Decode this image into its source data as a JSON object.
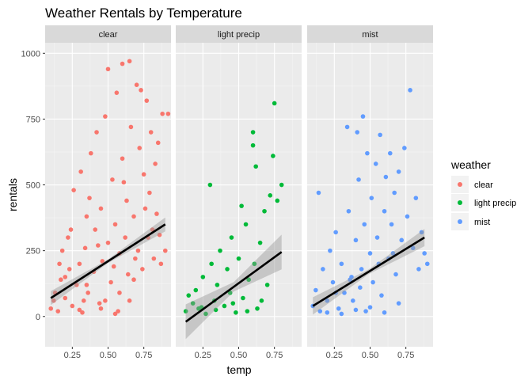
{
  "chart_data": {
    "type": "scatter",
    "title": "Weather Rentals by Temperature",
    "xlabel": "temp",
    "ylabel": "rentals",
    "xlim": [
      0.06,
      0.94
    ],
    "ylim": [
      -115,
      1040
    ],
    "x_ticks": [
      0.25,
      0.5,
      0.75
    ],
    "x_tick_labels": [
      "0.25",
      "0.50",
      "0.75"
    ],
    "y_ticks": [
      0,
      250,
      500,
      750,
      1000
    ],
    "y_tick_labels": [
      "0",
      "250",
      "500",
      "750",
      "1000"
    ],
    "grid": true,
    "legend": {
      "title": "weather",
      "placement": "right"
    },
    "facets": [
      {
        "label": "clear",
        "color": "#F8766D",
        "trend": {
          "x": [
            0.1,
            0.9
          ],
          "y": [
            70,
            350
          ],
          "se": 12
        }
      },
      {
        "label": "light precip",
        "color": "#00BA38",
        "trend": {
          "x": [
            0.13,
            0.8
          ],
          "y": [
            -20,
            245
          ],
          "se": 30
        }
      },
      {
        "label": "mist",
        "color": "#619CFF",
        "trend": {
          "x": [
            0.1,
            0.88
          ],
          "y": [
            40,
            300
          ],
          "se": 15
        }
      }
    ],
    "series": [
      {
        "name": "clear",
        "color": "#F8766D",
        "points": [
          [
            0.1,
            30
          ],
          [
            0.12,
            60
          ],
          [
            0.13,
            90
          ],
          [
            0.15,
            20
          ],
          [
            0.17,
            140
          ],
          [
            0.18,
            250
          ],
          [
            0.2,
            70
          ],
          [
            0.22,
            300
          ],
          [
            0.23,
            180
          ],
          [
            0.25,
            40
          ],
          [
            0.26,
            480
          ],
          [
            0.28,
            120
          ],
          [
            0.3,
            200
          ],
          [
            0.31,
            550
          ],
          [
            0.32,
            15
          ],
          [
            0.34,
            260
          ],
          [
            0.35,
            380
          ],
          [
            0.36,
            90
          ],
          [
            0.38,
            620
          ],
          [
            0.4,
            170
          ],
          [
            0.41,
            330
          ],
          [
            0.42,
            700
          ],
          [
            0.44,
            50
          ],
          [
            0.45,
            410
          ],
          [
            0.46,
            210
          ],
          [
            0.48,
            760
          ],
          [
            0.5,
            940
          ],
          [
            0.5,
            280
          ],
          [
            0.52,
            130
          ],
          [
            0.53,
            520
          ],
          [
            0.55,
            350
          ],
          [
            0.56,
            850
          ],
          [
            0.57,
            20
          ],
          [
            0.58,
            240
          ],
          [
            0.6,
            960
          ],
          [
            0.6,
            600
          ],
          [
            0.62,
            300
          ],
          [
            0.63,
            440
          ],
          [
            0.64,
            160
          ],
          [
            0.65,
            970
          ],
          [
            0.66,
            720
          ],
          [
            0.68,
            380
          ],
          [
            0.7,
            880
          ],
          [
            0.71,
            250
          ],
          [
            0.72,
            640
          ],
          [
            0.73,
            860
          ],
          [
            0.74,
            180
          ],
          [
            0.75,
            540
          ],
          [
            0.76,
            410
          ],
          [
            0.77,
            820
          ],
          [
            0.78,
            300
          ],
          [
            0.79,
            470
          ],
          [
            0.8,
            700
          ],
          [
            0.82,
            220
          ],
          [
            0.83,
            580
          ],
          [
            0.84,
            390
          ],
          [
            0.85,
            660
          ],
          [
            0.86,
            310
          ],
          [
            0.88,
            770
          ],
          [
            0.9,
            250
          ],
          [
            0.92,
            770
          ],
          [
            0.3,
            25
          ],
          [
            0.45,
            30
          ],
          [
            0.55,
            10
          ],
          [
            0.65,
            60
          ],
          [
            0.2,
            150
          ],
          [
            0.35,
            120
          ],
          [
            0.48,
            60
          ],
          [
            0.58,
            90
          ],
          [
            0.68,
            140
          ],
          [
            0.16,
            200
          ],
          [
            0.24,
            330
          ],
          [
            0.37,
            450
          ],
          [
            0.43,
            270
          ],
          [
            0.54,
            190
          ],
          [
            0.61,
            510
          ],
          [
            0.69,
            220
          ],
          [
            0.81,
            330
          ],
          [
            0.87,
            200
          ],
          [
            0.33,
            60
          ]
        ]
      },
      {
        "name": "light precip",
        "color": "#00BA38",
        "points": [
          [
            0.13,
            20
          ],
          [
            0.15,
            80
          ],
          [
            0.18,
            50
          ],
          [
            0.2,
            100
          ],
          [
            0.22,
            30
          ],
          [
            0.25,
            150
          ],
          [
            0.27,
            10
          ],
          [
            0.3,
            500
          ],
          [
            0.31,
            200
          ],
          [
            0.33,
            60
          ],
          [
            0.35,
            120
          ],
          [
            0.37,
            250
          ],
          [
            0.4,
            40
          ],
          [
            0.42,
            180
          ],
          [
            0.44,
            90
          ],
          [
            0.45,
            300
          ],
          [
            0.48,
            15
          ],
          [
            0.5,
            220
          ],
          [
            0.52,
            420
          ],
          [
            0.53,
            70
          ],
          [
            0.55,
            350
          ],
          [
            0.57,
            140
          ],
          [
            0.6,
            700
          ],
          [
            0.6,
            650
          ],
          [
            0.61,
            200
          ],
          [
            0.62,
            570
          ],
          [
            0.63,
            30
          ],
          [
            0.65,
            280
          ],
          [
            0.68,
            400
          ],
          [
            0.7,
            120
          ],
          [
            0.72,
            460
          ],
          [
            0.74,
            610
          ],
          [
            0.75,
            810
          ],
          [
            0.77,
            440
          ],
          [
            0.8,
            500
          ],
          [
            0.24,
            35
          ],
          [
            0.34,
            25
          ],
          [
            0.46,
            50
          ],
          [
            0.56,
            20
          ],
          [
            0.66,
            60
          ]
        ]
      },
      {
        "name": "mist",
        "color": "#619CFF",
        "points": [
          [
            0.1,
            40
          ],
          [
            0.12,
            100
          ],
          [
            0.14,
            470
          ],
          [
            0.15,
            20
          ],
          [
            0.17,
            180
          ],
          [
            0.2,
            60
          ],
          [
            0.22,
            250
          ],
          [
            0.24,
            130
          ],
          [
            0.26,
            320
          ],
          [
            0.28,
            30
          ],
          [
            0.3,
            200
          ],
          [
            0.32,
            90
          ],
          [
            0.34,
            720
          ],
          [
            0.35,
            400
          ],
          [
            0.37,
            150
          ],
          [
            0.38,
            60
          ],
          [
            0.4,
            290
          ],
          [
            0.41,
            700
          ],
          [
            0.42,
            520
          ],
          [
            0.43,
            110
          ],
          [
            0.45,
            760
          ],
          [
            0.46,
            350
          ],
          [
            0.47,
            20
          ],
          [
            0.48,
            620
          ],
          [
            0.5,
            240
          ],
          [
            0.51,
            450
          ],
          [
            0.52,
            130
          ],
          [
            0.54,
            580
          ],
          [
            0.55,
            300
          ],
          [
            0.57,
            690
          ],
          [
            0.58,
            80
          ],
          [
            0.6,
            400
          ],
          [
            0.61,
            530
          ],
          [
            0.63,
            220
          ],
          [
            0.64,
            620
          ],
          [
            0.65,
            350
          ],
          [
            0.67,
            470
          ],
          [
            0.68,
            160
          ],
          [
            0.7,
            550
          ],
          [
            0.72,
            290
          ],
          [
            0.74,
            640
          ],
          [
            0.76,
            380
          ],
          [
            0.78,
            860
          ],
          [
            0.8,
            260
          ],
          [
            0.82,
            450
          ],
          [
            0.84,
            180
          ],
          [
            0.86,
            320
          ],
          [
            0.88,
            240
          ],
          [
            0.9,
            200
          ],
          [
            0.2,
            15
          ],
          [
            0.3,
            10
          ],
          [
            0.4,
            25
          ],
          [
            0.5,
            35
          ],
          [
            0.6,
            15
          ],
          [
            0.7,
            50
          ],
          [
            0.44,
            180
          ],
          [
            0.56,
            200
          ],
          [
            0.66,
            240
          ],
          [
            0.36,
            140
          ],
          [
            0.26,
            90
          ]
        ]
      }
    ]
  }
}
